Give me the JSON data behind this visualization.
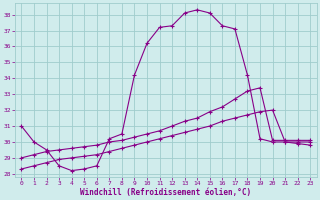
{
  "xlabel": "Windchill (Refroidissement éolien,°C)",
  "bg_color": "#d0ecec",
  "grid_color": "#a0cccc",
  "line_color": "#880088",
  "xlim": [
    -0.5,
    23.5
  ],
  "ylim": [
    27.8,
    38.7
  ],
  "yticks": [
    28,
    29,
    30,
    31,
    32,
    33,
    34,
    35,
    36,
    37,
    38
  ],
  "xticks": [
    0,
    1,
    2,
    3,
    4,
    5,
    6,
    7,
    8,
    9,
    10,
    11,
    12,
    13,
    14,
    15,
    16,
    17,
    18,
    19,
    20,
    21,
    22,
    23
  ],
  "line1_x": [
    0,
    1,
    2,
    3,
    4,
    5,
    6,
    7,
    8,
    9,
    10,
    11,
    12,
    13,
    14,
    15,
    16,
    17,
    18,
    19,
    20,
    21,
    22,
    23
  ],
  "line1_y": [
    31.0,
    30.0,
    29.5,
    28.5,
    28.2,
    28.3,
    28.5,
    30.2,
    30.5,
    34.2,
    36.2,
    37.2,
    37.3,
    38.1,
    38.3,
    38.1,
    37.3,
    37.1,
    34.2,
    30.2,
    30.0,
    30.0,
    30.0,
    30.0
  ],
  "line2_x": [
    0,
    1,
    2,
    3,
    4,
    5,
    6,
    7,
    8,
    9,
    10,
    11,
    12,
    13,
    14,
    15,
    16,
    17,
    18,
    19,
    20,
    21,
    22,
    23
  ],
  "line2_y": [
    29.0,
    29.2,
    29.4,
    29.5,
    29.6,
    29.7,
    29.8,
    30.0,
    30.1,
    30.3,
    30.5,
    30.7,
    31.0,
    31.3,
    31.5,
    31.9,
    32.2,
    32.7,
    33.2,
    33.4,
    30.1,
    30.1,
    30.1,
    30.1
  ],
  "line3_x": [
    0,
    1,
    2,
    3,
    4,
    5,
    6,
    7,
    8,
    9,
    10,
    11,
    12,
    13,
    14,
    15,
    16,
    17,
    18,
    19,
    20,
    21,
    22,
    23
  ],
  "line3_y": [
    28.3,
    28.5,
    28.7,
    28.9,
    29.0,
    29.1,
    29.2,
    29.4,
    29.6,
    29.8,
    30.0,
    30.2,
    30.4,
    30.6,
    30.8,
    31.0,
    31.3,
    31.5,
    31.7,
    31.9,
    32.0,
    30.0,
    29.9,
    29.8
  ]
}
